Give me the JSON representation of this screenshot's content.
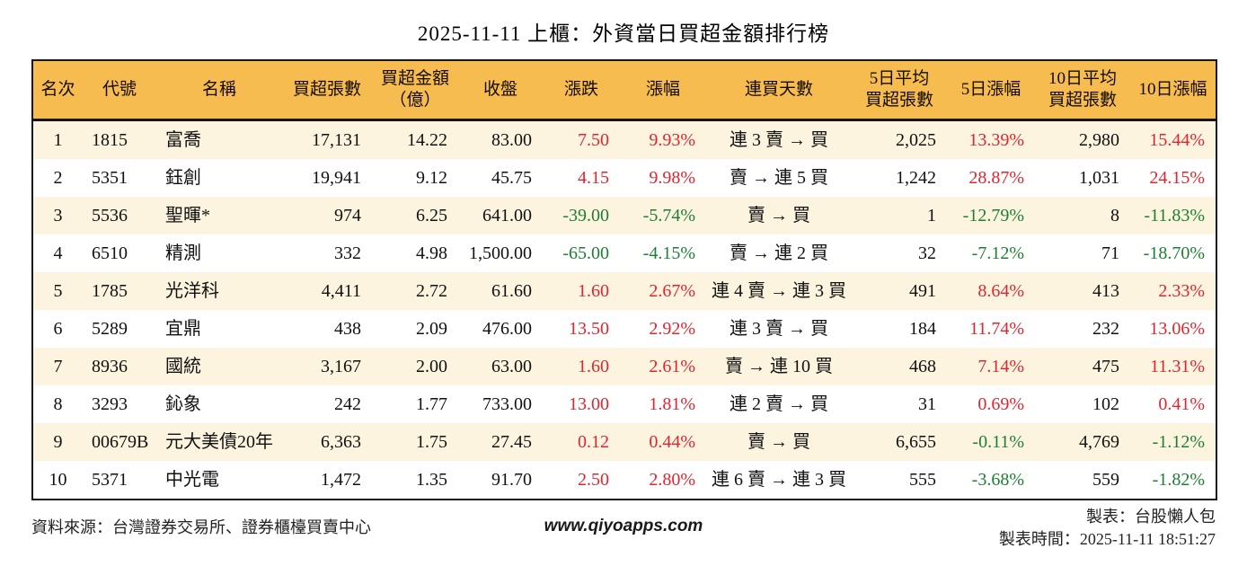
{
  "title": "2025-11-11 上櫃：外資當日買超金額排行榜",
  "colors": {
    "header_bg": "#F6BC50",
    "row_alt_bg": "#FCF4DF",
    "up_red": "#E2242F",
    "down_green": "#1E7E34",
    "border": "#161616"
  },
  "table": {
    "columns": [
      {
        "key": "rank",
        "label": "名次",
        "align": "ac",
        "width": 56,
        "colored": false
      },
      {
        "key": "code",
        "label": "代號",
        "align": "al",
        "width": 82,
        "colored": false
      },
      {
        "key": "name",
        "label": "名稱",
        "align": "al",
        "width": 140,
        "colored": false
      },
      {
        "key": "buy_volume",
        "label": "買超張數",
        "align": "ar",
        "width": 100,
        "colored": false
      },
      {
        "key": "buy_amount",
        "label": "買超金額\n（億）",
        "align": "ar",
        "width": 96,
        "colored": false
      },
      {
        "key": "close",
        "label": "收盤",
        "align": "ar",
        "width": 94,
        "colored": false
      },
      {
        "key": "change",
        "label": "漲跌",
        "align": "ar",
        "width": 86,
        "colored": true
      },
      {
        "key": "change_pct",
        "label": "漲幅",
        "align": "ar",
        "width": 96,
        "colored": true
      },
      {
        "key": "streak",
        "label": "連買天數",
        "align": "ac",
        "width": 162,
        "colored": false
      },
      {
        "key": "avg5_volume",
        "label": "5日平均\n買超張數",
        "align": "ar",
        "width": 106,
        "colored": false
      },
      {
        "key": "pct5",
        "label": "5日漲幅",
        "align": "ar",
        "width": 98,
        "colored": true
      },
      {
        "key": "avg10_volume",
        "label": "10日平均\n買超張數",
        "align": "ar",
        "width": 106,
        "colored": false
      },
      {
        "key": "pct10",
        "label": "10日漲幅",
        "align": "ar",
        "width": 96,
        "colored": true
      }
    ],
    "rows": [
      {
        "rank": "1",
        "code": "1815",
        "name": "富喬",
        "buy_volume": "17,131",
        "buy_amount": "14.22",
        "close": "83.00",
        "change": "7.50",
        "change_pct": "9.93%",
        "streak": "連 3 賣 → 買",
        "avg5_volume": "2,025",
        "pct5": "13.39%",
        "avg10_volume": "2,980",
        "pct10": "15.44%"
      },
      {
        "rank": "2",
        "code": "5351",
        "name": "鈺創",
        "buy_volume": "19,941",
        "buy_amount": "9.12",
        "close": "45.75",
        "change": "4.15",
        "change_pct": "9.98%",
        "streak": "賣 → 連 5 買",
        "avg5_volume": "1,242",
        "pct5": "28.87%",
        "avg10_volume": "1,031",
        "pct10": "24.15%"
      },
      {
        "rank": "3",
        "code": "5536",
        "name": "聖暉*",
        "buy_volume": "974",
        "buy_amount": "6.25",
        "close": "641.00",
        "change": "-39.00",
        "change_pct": "-5.74%",
        "streak": "賣 → 買",
        "avg5_volume": "1",
        "pct5": "-12.79%",
        "avg10_volume": "8",
        "pct10": "-11.83%"
      },
      {
        "rank": "4",
        "code": "6510",
        "name": "精測",
        "buy_volume": "332",
        "buy_amount": "4.98",
        "close": "1,500.00",
        "change": "-65.00",
        "change_pct": "-4.15%",
        "streak": "賣 → 連 2 買",
        "avg5_volume": "32",
        "pct5": "-7.12%",
        "avg10_volume": "71",
        "pct10": "-18.70%"
      },
      {
        "rank": "5",
        "code": "1785",
        "name": "光洋科",
        "buy_volume": "4,411",
        "buy_amount": "2.72",
        "close": "61.60",
        "change": "1.60",
        "change_pct": "2.67%",
        "streak": "連 4 賣 → 連 3 買",
        "avg5_volume": "491",
        "pct5": "8.64%",
        "avg10_volume": "413",
        "pct10": "2.33%"
      },
      {
        "rank": "6",
        "code": "5289",
        "name": "宜鼎",
        "buy_volume": "438",
        "buy_amount": "2.09",
        "close": "476.00",
        "change": "13.50",
        "change_pct": "2.92%",
        "streak": "連 3 賣 → 買",
        "avg5_volume": "184",
        "pct5": "11.74%",
        "avg10_volume": "232",
        "pct10": "13.06%"
      },
      {
        "rank": "7",
        "code": "8936",
        "name": "國統",
        "buy_volume": "3,167",
        "buy_amount": "2.00",
        "close": "63.00",
        "change": "1.60",
        "change_pct": "2.61%",
        "streak": "賣 → 連 10 買",
        "avg5_volume": "468",
        "pct5": "7.14%",
        "avg10_volume": "475",
        "pct10": "11.31%"
      },
      {
        "rank": "8",
        "code": "3293",
        "name": "鈊象",
        "buy_volume": "242",
        "buy_amount": "1.77",
        "close": "733.00",
        "change": "13.00",
        "change_pct": "1.81%",
        "streak": "連 2 賣 → 買",
        "avg5_volume": "31",
        "pct5": "0.69%",
        "avg10_volume": "102",
        "pct10": "0.41%"
      },
      {
        "rank": "9",
        "code": "00679B",
        "name": "元大美債20年",
        "buy_volume": "6,363",
        "buy_amount": "1.75",
        "close": "27.45",
        "change": "0.12",
        "change_pct": "0.44%",
        "streak": "賣 → 買",
        "avg5_volume": "6,655",
        "pct5": "-0.11%",
        "avg10_volume": "4,769",
        "pct10": "-1.12%"
      },
      {
        "rank": "10",
        "code": "5371",
        "name": "中光電",
        "buy_volume": "1,472",
        "buy_amount": "1.35",
        "close": "91.70",
        "change": "2.50",
        "change_pct": "2.80%",
        "streak": "連 6 賣 → 連 3 買",
        "avg5_volume": "555",
        "pct5": "-3.68%",
        "avg10_volume": "559",
        "pct10": "-1.82%"
      }
    ]
  },
  "footer": {
    "source": "資料來源：台灣證券交易所、證券櫃檯買賣中心",
    "website": "www.qiyoapps.com",
    "maker": "製表：台股懶人包",
    "made_at": "製表時間：2025-11-11 18:51:27"
  }
}
